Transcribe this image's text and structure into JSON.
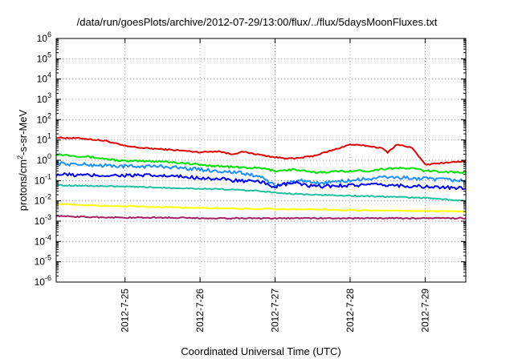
{
  "chart_data": {
    "type": "line",
    "title": "/data/run/goesPlots/archive/2012-07-29/13:00/flux/../flux/5daysMoonFluxes.txt",
    "xlabel": "Coordinated Universal Time (UTC)",
    "ylabel": {
      "pre": "protons/cm",
      "sup": "2",
      "post": "-s-sr-MeV"
    },
    "yscale": "log",
    "ylim": [
      1e-06,
      1000000.0
    ],
    "xlim": [
      "2012-07-24T02:00",
      "2012-07-29T13:00"
    ],
    "yticks": [
      {
        "base": "10",
        "exp": "6"
      },
      {
        "base": "10",
        "exp": "5"
      },
      {
        "base": "10",
        "exp": "4"
      },
      {
        "base": "10",
        "exp": "3"
      },
      {
        "base": "10",
        "exp": "2"
      },
      {
        "base": "10",
        "exp": "1"
      },
      {
        "base": "10",
        "exp": "0"
      },
      {
        "base": "10",
        "exp": "-1"
      },
      {
        "base": "10",
        "exp": "-2"
      },
      {
        "base": "10",
        "exp": "-3"
      },
      {
        "base": "10",
        "exp": "-4"
      },
      {
        "base": "10",
        "exp": "-5"
      },
      {
        "base": "10",
        "exp": "-6"
      }
    ],
    "xticks": [
      "2012-7-25",
      "2012-7-26",
      "2012-7-27",
      "2012-7-28",
      "2012-7-29"
    ],
    "grid": true,
    "series": [
      {
        "color": "#e00000",
        "points": [
          [
            "2012-07-24T02:00",
            13
          ],
          [
            "2012-07-24T10:00",
            12
          ],
          [
            "2012-07-24T18:00",
            9
          ],
          [
            "2012-07-25T00:00",
            5
          ],
          [
            "2012-07-25T06:00",
            4
          ],
          [
            "2012-07-25T12:00",
            3.5
          ],
          [
            "2012-07-25T18:00",
            3
          ],
          [
            "2012-07-26T00:00",
            2.5
          ],
          [
            "2012-07-26T06:00",
            2.8
          ],
          [
            "2012-07-26T10:00",
            2
          ],
          [
            "2012-07-26T14:00",
            2.6
          ],
          [
            "2012-07-26T18:00",
            2
          ],
          [
            "2012-07-27T00:00",
            1.4
          ],
          [
            "2012-07-27T06:00",
            1.2
          ],
          [
            "2012-07-27T12:00",
            1.6
          ],
          [
            "2012-07-27T18:00",
            3
          ],
          [
            "2012-07-28T00:00",
            6
          ],
          [
            "2012-07-28T06:00",
            5
          ],
          [
            "2012-07-28T10:00",
            4
          ],
          [
            "2012-07-28T12:00",
            2.5
          ],
          [
            "2012-07-28T15:00",
            6
          ],
          [
            "2012-07-28T20:00",
            4
          ],
          [
            "2012-07-29T00:00",
            0.6
          ],
          [
            "2012-07-29T04:00",
            0.7
          ],
          [
            "2012-07-29T08:00",
            0.8
          ],
          [
            "2012-07-29T13:00",
            0.9
          ]
        ]
      },
      {
        "color": "#00e000",
        "points": [
          [
            "2012-07-24T02:00",
            2
          ],
          [
            "2012-07-24T12:00",
            1.5
          ],
          [
            "2012-07-25T00:00",
            0.9
          ],
          [
            "2012-07-25T12:00",
            0.9
          ],
          [
            "2012-07-26T00:00",
            0.6
          ],
          [
            "2012-07-26T12:00",
            0.45
          ],
          [
            "2012-07-26T20:00",
            0.4
          ],
          [
            "2012-07-27T00:00",
            0.3
          ],
          [
            "2012-07-27T06:00",
            0.35
          ],
          [
            "2012-07-27T12:00",
            0.25
          ],
          [
            "2012-07-28T00:00",
            0.3
          ],
          [
            "2012-07-28T06:00",
            0.3
          ],
          [
            "2012-07-28T12:00",
            0.4
          ],
          [
            "2012-07-28T20:00",
            0.4
          ],
          [
            "2012-07-29T00:00",
            0.3
          ],
          [
            "2012-07-29T13:00",
            0.25
          ]
        ]
      },
      {
        "color": "#1e90ff",
        "points": [
          [
            "2012-07-24T02:00",
            0.7
          ],
          [
            "2012-07-24T12:00",
            0.6
          ],
          [
            "2012-07-25T00:00",
            0.5
          ],
          [
            "2012-07-25T12:00",
            0.5
          ],
          [
            "2012-07-26T00:00",
            0.35
          ],
          [
            "2012-07-26T12:00",
            0.25
          ],
          [
            "2012-07-26T20:00",
            0.15
          ],
          [
            "2012-07-27T00:00",
            0.05
          ],
          [
            "2012-07-27T04:00",
            0.08
          ],
          [
            "2012-07-27T08:00",
            0.1
          ],
          [
            "2012-07-27T12:00",
            0.07
          ],
          [
            "2012-07-28T00:00",
            0.1
          ],
          [
            "2012-07-28T12:00",
            0.15
          ],
          [
            "2012-07-29T00:00",
            0.12
          ],
          [
            "2012-07-29T13:00",
            0.1
          ]
        ]
      },
      {
        "color": "#0000ff",
        "points": [
          [
            "2012-07-24T02:00",
            0.2
          ],
          [
            "2012-07-24T12:00",
            0.18
          ],
          [
            "2012-07-25T00:00",
            0.18
          ],
          [
            "2012-07-25T12:00",
            0.17
          ],
          [
            "2012-07-26T00:00",
            0.14
          ],
          [
            "2012-07-26T12:00",
            0.1
          ],
          [
            "2012-07-26T20:00",
            0.08
          ],
          [
            "2012-07-27T00:00",
            0.05
          ],
          [
            "2012-07-27T06:00",
            0.08
          ],
          [
            "2012-07-27T12:00",
            0.05
          ],
          [
            "2012-07-28T00:00",
            0.06
          ],
          [
            "2012-07-28T12:00",
            0.06
          ],
          [
            "2012-07-29T00:00",
            0.05
          ],
          [
            "2012-07-29T13:00",
            0.04
          ]
        ]
      },
      {
        "color": "#20c0a0",
        "points": [
          [
            "2012-07-24T02:00",
            0.06
          ],
          [
            "2012-07-24T12:00",
            0.055
          ],
          [
            "2012-07-25T00:00",
            0.05
          ],
          [
            "2012-07-25T12:00",
            0.045
          ],
          [
            "2012-07-26T00:00",
            0.04
          ],
          [
            "2012-07-26T12:00",
            0.035
          ],
          [
            "2012-07-26T20:00",
            0.03
          ],
          [
            "2012-07-27T00:00",
            0.025
          ],
          [
            "2012-07-27T12:00",
            0.02
          ],
          [
            "2012-07-28T00:00",
            0.018
          ],
          [
            "2012-07-28T12:00",
            0.016
          ],
          [
            "2012-07-29T00:00",
            0.014
          ],
          [
            "2012-07-29T13:00",
            0.01
          ]
        ]
      },
      {
        "color": "#ffff00",
        "points": [
          [
            "2012-07-24T02:00",
            0.007
          ],
          [
            "2012-07-24T12:00",
            0.006
          ],
          [
            "2012-07-25T00:00",
            0.0055
          ],
          [
            "2012-07-25T12:00",
            0.005
          ],
          [
            "2012-07-26T00:00",
            0.0045
          ],
          [
            "2012-07-26T12:00",
            0.0042
          ],
          [
            "2012-07-27T00:00",
            0.004
          ],
          [
            "2012-07-27T12:00",
            0.0038
          ],
          [
            "2012-07-28T00:00",
            0.0035
          ],
          [
            "2012-07-28T12:00",
            0.0033
          ],
          [
            "2012-07-29T00:00",
            0.0032
          ],
          [
            "2012-07-29T13:00",
            0.003
          ]
        ]
      },
      {
        "color": "#a02060",
        "points": [
          [
            "2012-07-24T02:00",
            0.0018
          ],
          [
            "2012-07-24T12:00",
            0.0016
          ],
          [
            "2012-07-25T00:00",
            0.0015
          ],
          [
            "2012-07-25T12:00",
            0.0015
          ],
          [
            "2012-07-26T00:00",
            0.0014
          ],
          [
            "2012-07-26T12:00",
            0.0014
          ],
          [
            "2012-07-27T00:00",
            0.0014
          ],
          [
            "2012-07-27T12:00",
            0.0014
          ],
          [
            "2012-07-28T00:00",
            0.0014
          ],
          [
            "2012-07-28T12:00",
            0.0014
          ],
          [
            "2012-07-29T00:00",
            0.0014
          ],
          [
            "2012-07-29T13:00",
            0.0014
          ]
        ]
      }
    ]
  }
}
